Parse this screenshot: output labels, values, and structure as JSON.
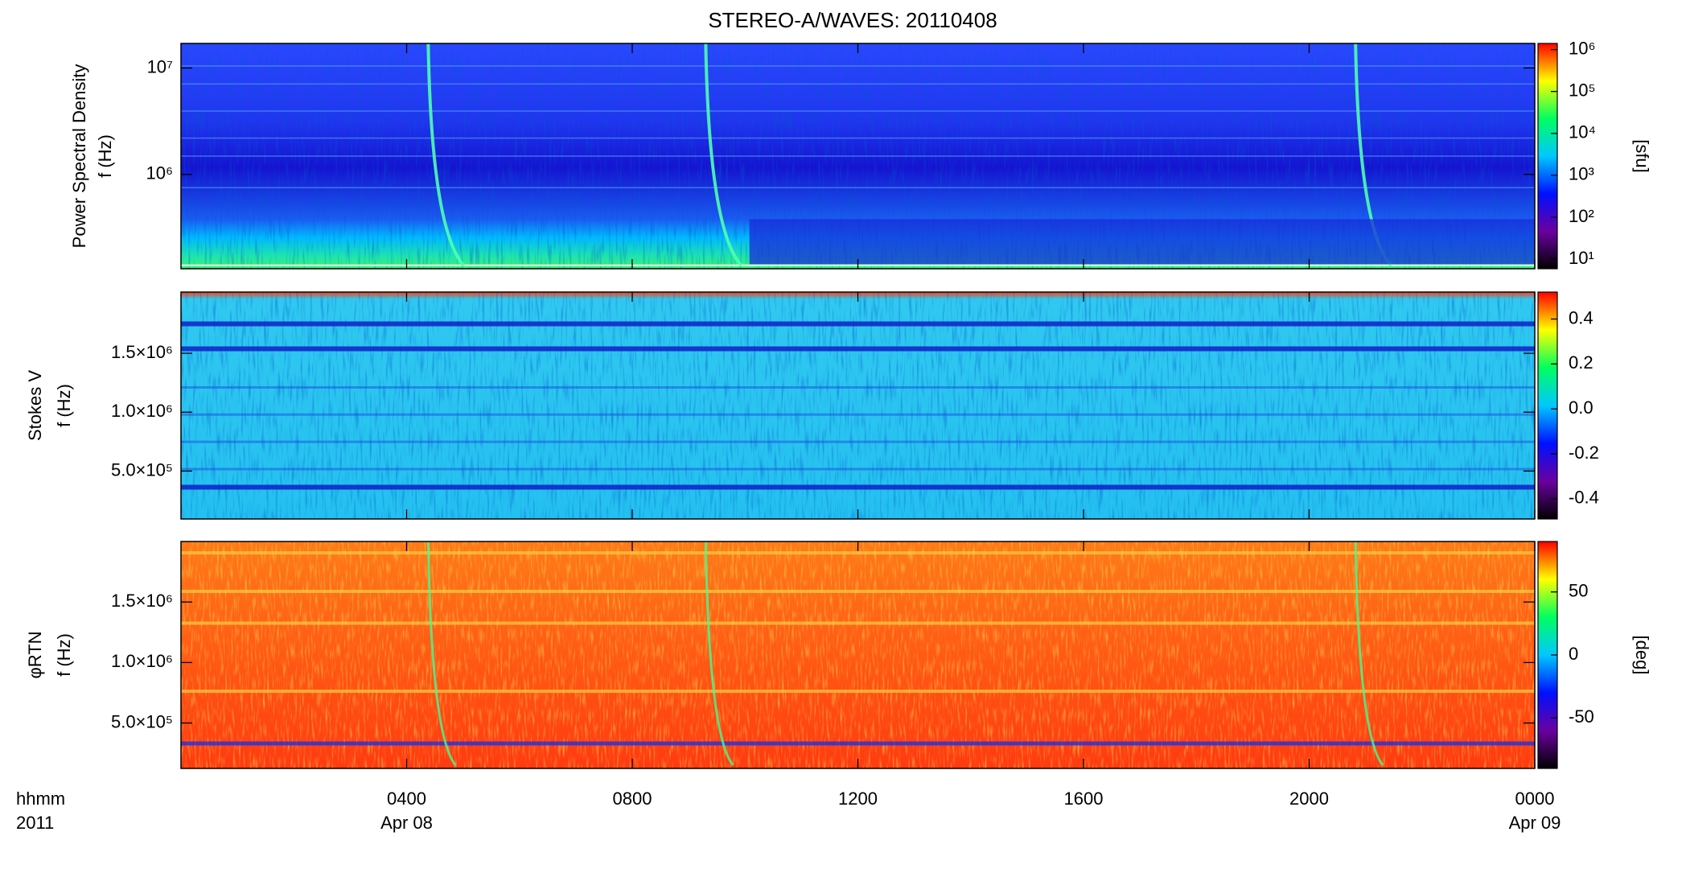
{
  "chart_data": [
    {
      "type": "heatmap",
      "title": "STEREO-A/WAVES: 20110408",
      "ylabel": [
        "Power Spectral Density",
        "f (Hz)"
      ],
      "ylog": true,
      "ylim": [
        130000,
        17000000
      ],
      "yticks": [
        {
          "value": 1000000,
          "label": "10⁶"
        },
        {
          "value": 10000000,
          "label": "10⁷"
        }
      ],
      "colorbar": {
        "log": true,
        "lim": [
          5.9,
          1400000
        ],
        "label": "[sfu]",
        "ticks": [
          {
            "value": 10,
            "label": "10¹"
          },
          {
            "value": 100,
            "label": "10²"
          },
          {
            "value": 1000,
            "label": "10³"
          },
          {
            "value": 10000,
            "label": "10⁴"
          },
          {
            "value": 100000,
            "label": "10⁵"
          },
          {
            "value": 1000000,
            "label": "10⁶"
          }
        ]
      },
      "colormap": [
        "#000000",
        "#6a00a0",
        "#0010ff",
        "#00c8ff",
        "#00ff60",
        "#ffff00",
        "#ff0000"
      ]
    },
    {
      "type": "heatmap",
      "ylabel": [
        "Stokes V",
        "f (Hz)"
      ],
      "ylog": false,
      "ylim": [
        93000,
        2020000
      ],
      "yticks": [
        {
          "value": 500000,
          "label": "5.0×10⁵"
        },
        {
          "value": 1000000,
          "label": "1.0×10⁶"
        },
        {
          "value": 1500000,
          "label": "1.5×10⁶"
        }
      ],
      "colorbar": {
        "log": false,
        "lim": [
          -0.49,
          0.52
        ],
        "ticks": [
          -0.4,
          -0.2,
          {
            "value": 0,
            "label": "0.0"
          },
          0.2,
          0.4
        ]
      },
      "colormap": [
        "#000000",
        "#6a00a0",
        "#0010ff",
        "#00c8ff",
        "#00ff60",
        "#ffff00",
        "#ff0000"
      ]
    },
    {
      "type": "heatmap",
      "ylabel": [
        "φRTN",
        "f (Hz)"
      ],
      "ylog": false,
      "ylim": [
        125000,
        2000000
      ],
      "yticks": [
        {
          "value": 500000,
          "label": "5.0×10⁵"
        },
        {
          "value": 1000000,
          "label": "1.0×10⁶"
        },
        {
          "value": 1500000,
          "label": "1.5×10⁶"
        }
      ],
      "colorbar": {
        "log": false,
        "lim": [
          -90,
          90
        ],
        "label": "[deg]",
        "ticks": [
          -50,
          0,
          50
        ]
      },
      "colormap": [
        "#000000",
        "#6a00a0",
        "#0010ff",
        "#00c8ff",
        "#00ff60",
        "#ffff00",
        "#ff0000"
      ],
      "xlim": [
        0,
        24
      ],
      "xticks": [
        {
          "value": 4,
          "label": "0400"
        },
        {
          "value": 8,
          "label": "0800"
        },
        {
          "value": 12,
          "label": "1200"
        },
        {
          "value": 16,
          "label": "1600"
        },
        {
          "value": 20,
          "label": "2000"
        },
        {
          "value": 24,
          "label": "0000"
        }
      ],
      "xlabel": [
        "hhmm",
        "2011"
      ],
      "date_labels": [
        {
          "value": 4,
          "label": "Apr 08"
        },
        {
          "value": 24,
          "label": "Apr 09"
        }
      ]
    }
  ]
}
